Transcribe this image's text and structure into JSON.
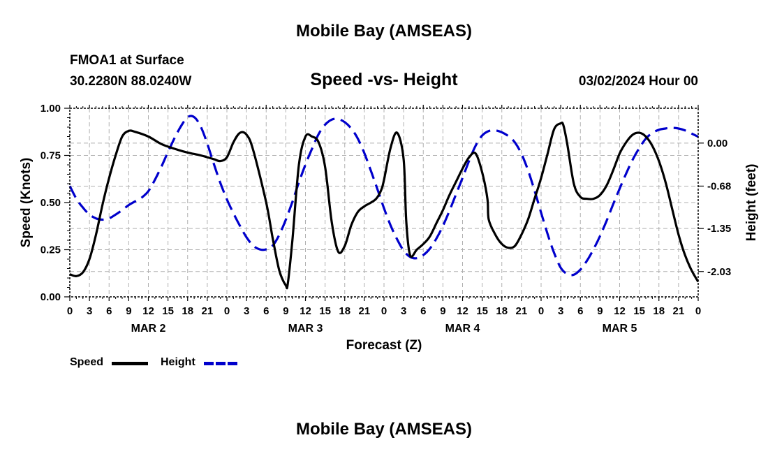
{
  "header": {
    "title": "Mobile Bay (AMSEAS)",
    "station": "FMOA1 at Surface",
    "coordinates": "30.2280N  88.0240W",
    "subtitle": "Speed -vs- Height",
    "datetime": "03/02/2024 Hour 00"
  },
  "footer": {
    "title": "Mobile Bay (AMSEAS)"
  },
  "legend": {
    "speed_label": "Speed",
    "height_label": "Height"
  },
  "colors": {
    "speed": "#000000",
    "height": "#0000cc",
    "grid": "#b0b0b0"
  },
  "chart_data": {
    "type": "line",
    "title": "Speed -vs- Height",
    "xlabel": "Forecast (Z)",
    "ylabel": "Speed (Knots)",
    "y2label": "Height (feet)",
    "x_unit": "hours since MAR 2 00Z",
    "xlim": [
      0,
      96
    ],
    "ylim": [
      0,
      1
    ],
    "y2lim": [
      -2.43,
      0.55
    ],
    "y_ticks": [
      "0.00",
      "0.25",
      "0.50",
      "0.75",
      "1.00"
    ],
    "y_tick_values": [
      0,
      0.25,
      0.5,
      0.75,
      1.0
    ],
    "y2_ticks": [
      "-2.03",
      "-1.35",
      "-0.68",
      "0.00"
    ],
    "y2_tick_values": [
      -2.03,
      -1.35,
      -0.68,
      0.0
    ],
    "x_tick_labels": [
      "0",
      "3",
      "6",
      "9",
      "12",
      "15",
      "18",
      "21",
      "0",
      "3",
      "6",
      "9",
      "12",
      "15",
      "18",
      "21",
      "0",
      "3",
      "6",
      "9",
      "12",
      "15",
      "18",
      "21",
      "0",
      "3",
      "6",
      "9",
      "12",
      "15",
      "18",
      "21",
      "0"
    ],
    "day_labels": [
      {
        "label": "MAR 2",
        "hour": 12
      },
      {
        "label": "MAR 3",
        "hour": 36
      },
      {
        "label": "MAR 4",
        "hour": 60
      },
      {
        "label": "MAR 5",
        "hour": 84
      }
    ],
    "series": [
      {
        "name": "Speed",
        "axis": "left",
        "style": "solid",
        "x": [
          0,
          1,
          2,
          3,
          4,
          5,
          6,
          7,
          8,
          9,
          10,
          12,
          14,
          16,
          18,
          20,
          22,
          23,
          24,
          25,
          26,
          27,
          28,
          30,
          31,
          32,
          33,
          33.3,
          34,
          35,
          36,
          37,
          38,
          39,
          40,
          41,
          42,
          43,
          44,
          45,
          46,
          46.8,
          47.5,
          48,
          49,
          50,
          51,
          51.4,
          52,
          53,
          54,
          55,
          56,
          57,
          58,
          59,
          60,
          61,
          62,
          63,
          63.8,
          64,
          65,
          66,
          67,
          68,
          69,
          70,
          71,
          72,
          73,
          74,
          75,
          75.4,
          76,
          77,
          78,
          79,
          80,
          81,
          82,
          83,
          84,
          85,
          86,
          87,
          88,
          89,
          90,
          91,
          92,
          93,
          94,
          95,
          96
        ],
        "values": [
          0.12,
          0.11,
          0.13,
          0.2,
          0.33,
          0.49,
          0.63,
          0.75,
          0.85,
          0.88,
          0.875,
          0.85,
          0.81,
          0.785,
          0.765,
          0.75,
          0.73,
          0.72,
          0.74,
          0.82,
          0.87,
          0.86,
          0.78,
          0.5,
          0.31,
          0.14,
          0.06,
          0.07,
          0.3,
          0.7,
          0.85,
          0.85,
          0.82,
          0.69,
          0.4,
          0.24,
          0.27,
          0.38,
          0.45,
          0.48,
          0.5,
          0.52,
          0.56,
          0.62,
          0.79,
          0.87,
          0.73,
          0.4,
          0.22,
          0.25,
          0.28,
          0.32,
          0.39,
          0.46,
          0.54,
          0.61,
          0.68,
          0.74,
          0.76,
          0.66,
          0.52,
          0.41,
          0.33,
          0.28,
          0.26,
          0.27,
          0.33,
          0.41,
          0.52,
          0.63,
          0.76,
          0.89,
          0.92,
          0.91,
          0.81,
          0.6,
          0.53,
          0.52,
          0.52,
          0.54,
          0.59,
          0.67,
          0.76,
          0.82,
          0.86,
          0.87,
          0.85,
          0.8,
          0.72,
          0.61,
          0.47,
          0.33,
          0.22,
          0.14,
          0.08
        ]
      },
      {
        "name": "Height",
        "axis": "right",
        "style": "dashed",
        "x": [
          0,
          1,
          2,
          3,
          4,
          5,
          6,
          7,
          8,
          9,
          10,
          11,
          12,
          13,
          14,
          15,
          16,
          17,
          18,
          19,
          20,
          21,
          22,
          23,
          24,
          25,
          26,
          27,
          28,
          29,
          30,
          31,
          32,
          33,
          34,
          35,
          36,
          37,
          38,
          39,
          40,
          41,
          42,
          43,
          44,
          45,
          46,
          47,
          48,
          49,
          50,
          51,
          52,
          53,
          54,
          55,
          56,
          57,
          58,
          59,
          60,
          61,
          62,
          63,
          64,
          65,
          66,
          67,
          68,
          69,
          70,
          71,
          72,
          73,
          74,
          75,
          76,
          77,
          78,
          79,
          80,
          81,
          82,
          83,
          84,
          85,
          86,
          87,
          88,
          89,
          90,
          91,
          92,
          93,
          94,
          95,
          96
        ],
        "values": [
          -0.68,
          -0.88,
          -1.02,
          -1.13,
          -1.19,
          -1.21,
          -1.19,
          -1.13,
          -1.06,
          -0.98,
          -0.92,
          -0.86,
          -0.76,
          -0.58,
          -0.37,
          -0.14,
          0.08,
          0.27,
          0.41,
          0.41,
          0.26,
          -0.01,
          -0.33,
          -0.63,
          -0.89,
          -1.11,
          -1.31,
          -1.49,
          -1.62,
          -1.68,
          -1.68,
          -1.62,
          -1.45,
          -1.21,
          -0.93,
          -0.62,
          -0.34,
          -0.09,
          0.14,
          0.29,
          0.37,
          0.38,
          0.33,
          0.23,
          0.07,
          -0.16,
          -0.44,
          -0.73,
          -1.03,
          -1.3,
          -1.52,
          -1.7,
          -1.8,
          -1.82,
          -1.77,
          -1.67,
          -1.51,
          -1.31,
          -1.07,
          -0.81,
          -0.55,
          -0.28,
          -0.04,
          0.12,
          0.19,
          0.2,
          0.17,
          0.11,
          0.01,
          -0.17,
          -0.43,
          -0.75,
          -1.1,
          -1.44,
          -1.74,
          -1.97,
          -2.07,
          -2.08,
          -2.0,
          -1.86,
          -1.68,
          -1.47,
          -1.23,
          -0.97,
          -0.72,
          -0.48,
          -0.26,
          -0.08,
          0.07,
          0.16,
          0.21,
          0.23,
          0.24,
          0.23,
          0.2,
          0.15,
          0.1
        ]
      }
    ]
  }
}
